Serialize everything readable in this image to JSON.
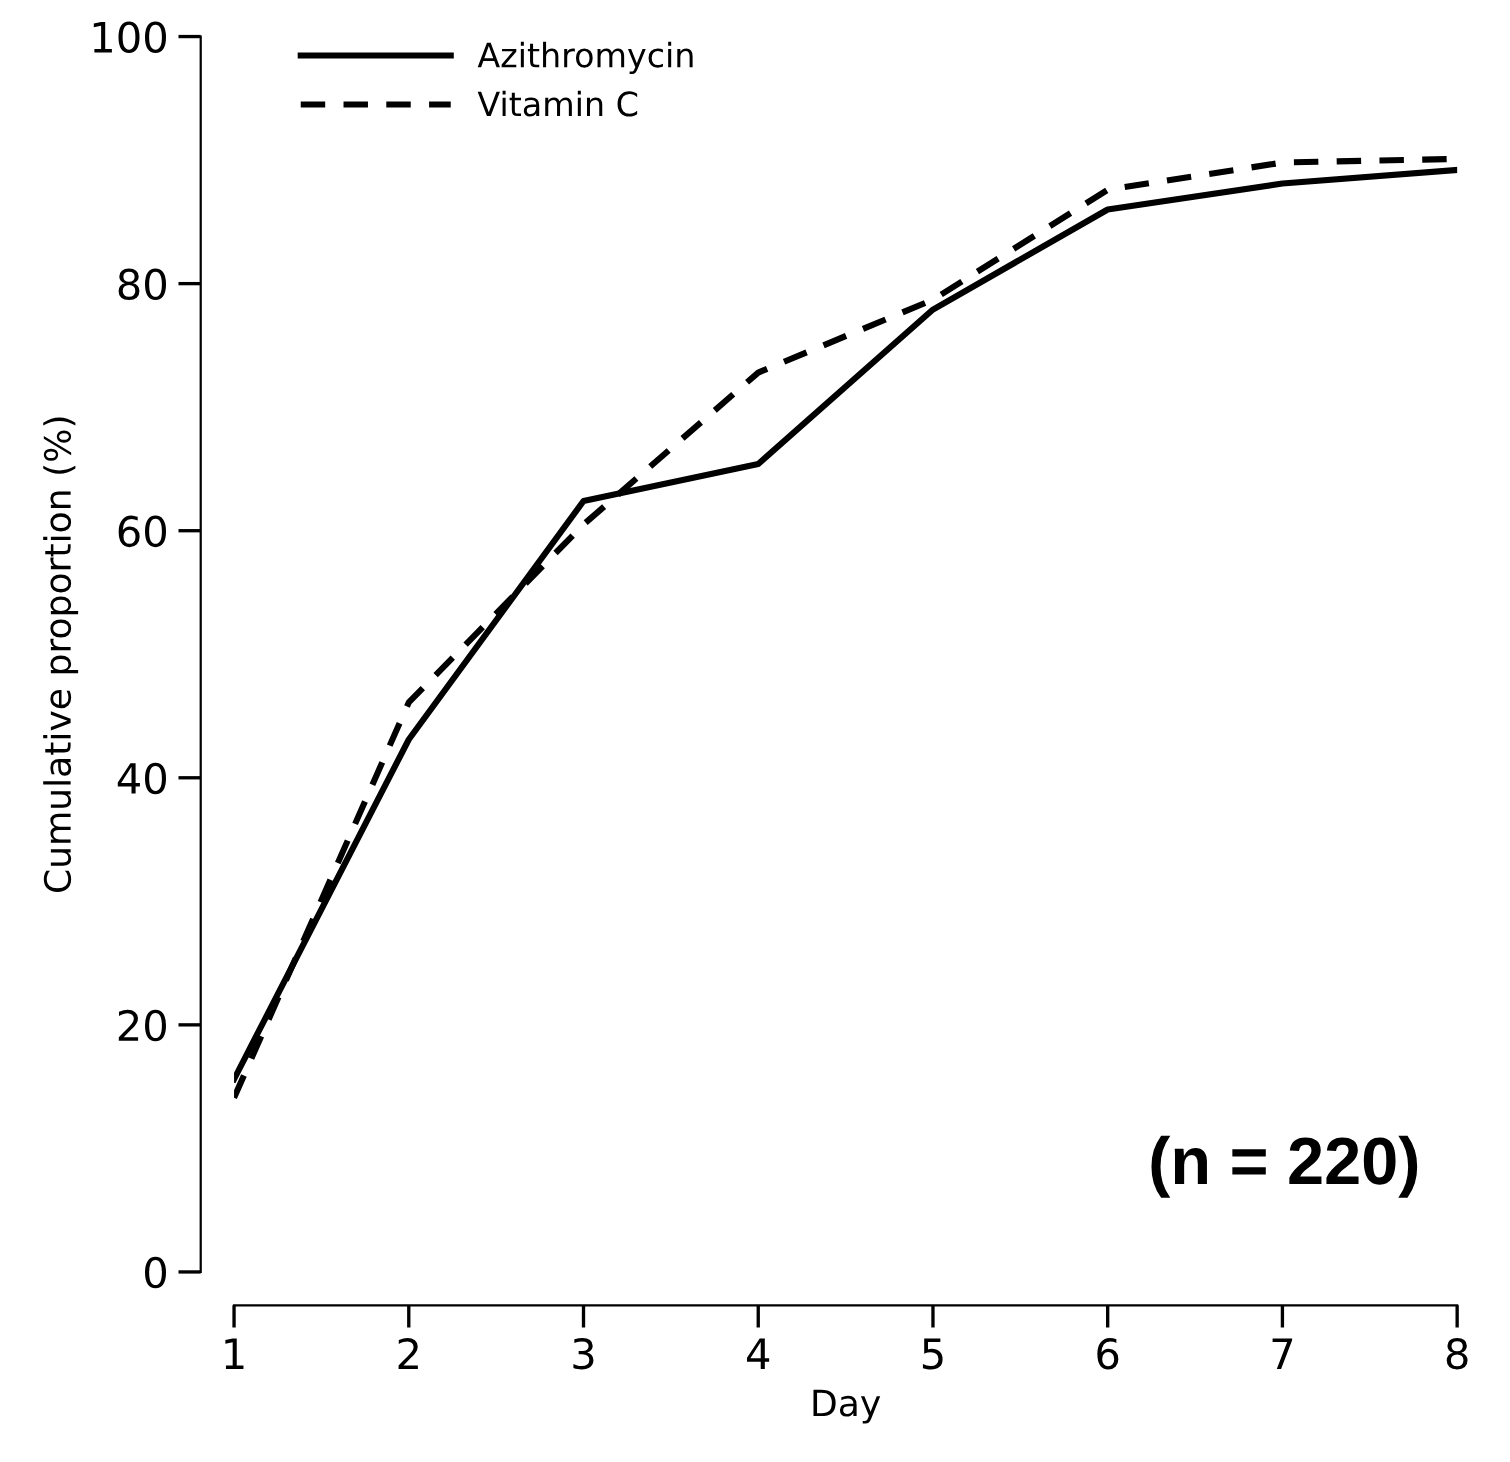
{
  "chart_data": {
    "type": "line",
    "xlabel": "Day",
    "ylabel": "Cumulative proportion (%)",
    "x": [
      1,
      2,
      3,
      4,
      5,
      6,
      7,
      8
    ],
    "series": [
      {
        "name": "Azithromycin",
        "color": "#000000",
        "line_style": "solid",
        "values": [
          15.6,
          43.1,
          62.4,
          65.4,
          77.9,
          86.0,
          88.1,
          89.2
        ]
      },
      {
        "name": "Vitamin C",
        "color": "#000000",
        "line_style": "dashed",
        "values": [
          14.1,
          46.1,
          60.5,
          72.8,
          78.7,
          87.6,
          89.8,
          90.1
        ]
      }
    ],
    "xlim": [
      1,
      8
    ],
    "xticks": [
      1,
      2,
      3,
      4,
      5,
      6,
      7,
      8
    ],
    "ylim": [
      0,
      100
    ],
    "yticks": [
      0,
      20,
      40,
      60,
      80,
      100
    ],
    "grid": false,
    "legend": "top left",
    "marker": "none",
    "annotations": [
      "(n = 220)"
    ]
  }
}
